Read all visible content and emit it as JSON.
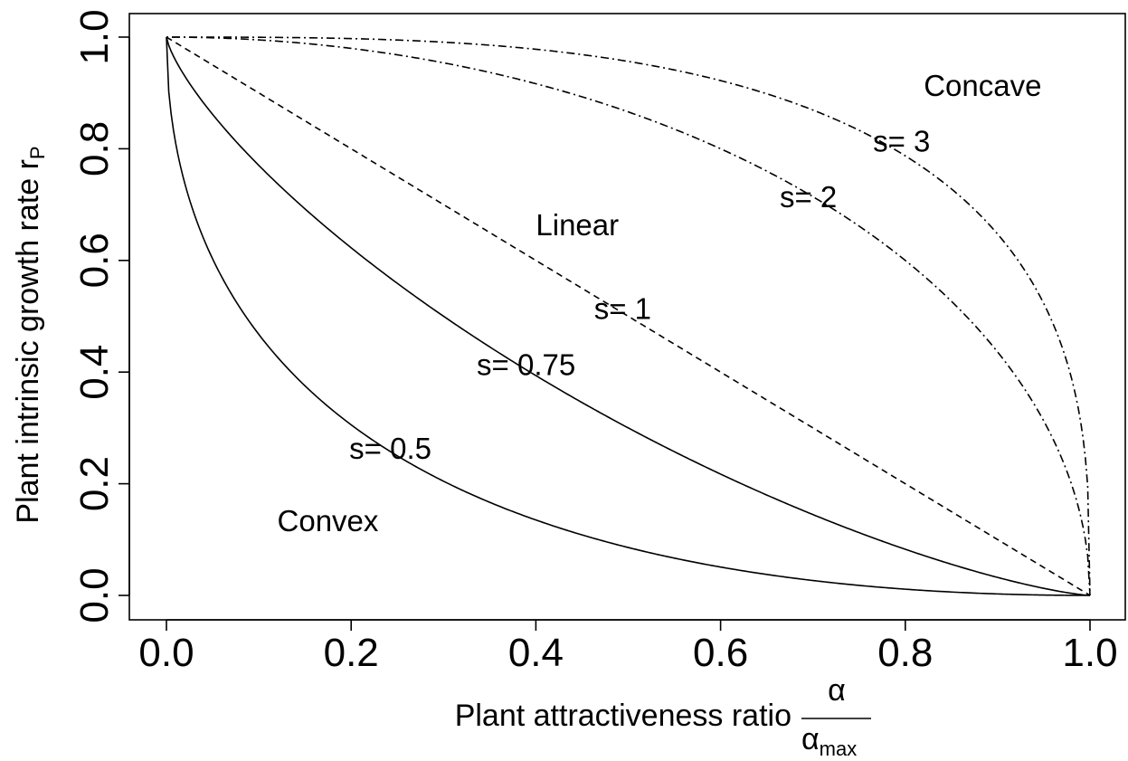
{
  "chart_data": {
    "type": "line",
    "xlabel": "Plant attractiveness ratio",
    "xlabel_fraction": {
      "numerator": "α",
      "denominator": "α",
      "denominator_sub": "max"
    },
    "ylabel": "Plant intrinsic growth rate r",
    "ylabel_sub": "P",
    "xlim": [
      0,
      1
    ],
    "ylim": [
      0,
      1
    ],
    "x_ticks": [
      "0.0",
      "0.2",
      "0.4",
      "0.6",
      "0.8",
      "1.0"
    ],
    "y_ticks": [
      "0.0",
      "0.2",
      "0.4",
      "0.6",
      "0.8",
      "1.0"
    ],
    "x_tick_values": [
      0,
      0.2,
      0.4,
      0.6,
      0.8,
      1.0
    ],
    "y_tick_values": [
      0,
      0.2,
      0.4,
      0.6,
      0.8,
      1.0
    ],
    "grid": false,
    "legend": "none",
    "function": "r = (1 - x^s)^(1/s)",
    "series": [
      {
        "s": 0.5,
        "line_style": "solid"
      },
      {
        "s": 0.75,
        "line_style": "solid"
      },
      {
        "s": 1,
        "line_style": "dashed"
      },
      {
        "s": 2,
        "line_style": "dotdash"
      },
      {
        "s": 3,
        "line_style": "dotdash"
      }
    ],
    "annotations": [
      {
        "text": "Concave",
        "x": 0.82,
        "y": 0.895
      },
      {
        "text": "Linear",
        "x": 0.4,
        "y": 0.645
      },
      {
        "text": "Convex",
        "x": 0.12,
        "y": 0.115
      },
      {
        "text": "s= 3",
        "x": 0.765,
        "y": 0.795
      },
      {
        "text": "s= 2",
        "x": 0.664,
        "y": 0.695
      },
      {
        "text": "s= 1",
        "x": 0.463,
        "y": 0.495
      },
      {
        "text": "s= 0.75",
        "x": 0.336,
        "y": 0.395
      },
      {
        "text": "s= 0.5",
        "x": 0.198,
        "y": 0.245
      }
    ]
  }
}
